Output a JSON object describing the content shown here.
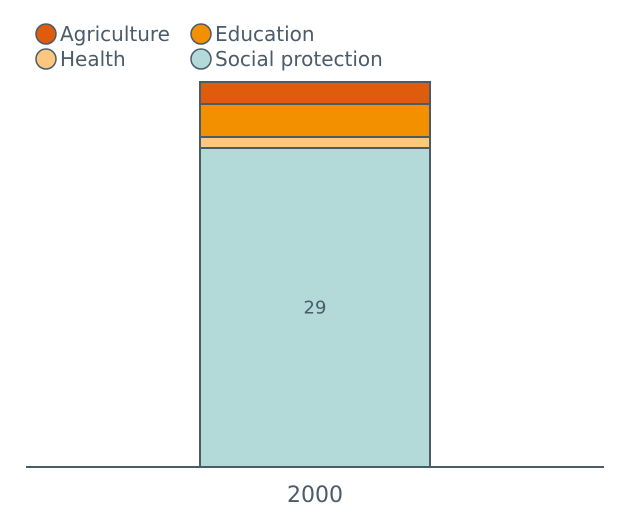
{
  "chart_data": {
    "type": "bar",
    "stacked": true,
    "categories": [
      "2000"
    ],
    "series": [
      {
        "name": "Social protection",
        "values": [
          29
        ],
        "color": "#b3d9d8"
      },
      {
        "name": "Health",
        "values": [
          1
        ],
        "color": "#fdc77f"
      },
      {
        "name": "Education",
        "values": [
          3
        ],
        "color": "#f39000"
      },
      {
        "name": "Agriculture",
        "values": [
          2
        ],
        "color": "#de5c0b"
      }
    ],
    "data_labels": [
      {
        "series": "Social protection",
        "category": "2000",
        "text": "29"
      }
    ],
    "legend": {
      "placement": "top-left",
      "order": [
        "Agriculture",
        "Education",
        "Health",
        "Social protection"
      ]
    },
    "ylim": [
      0,
      35
    ],
    "grid": false,
    "outline_color": "#4a5b6a"
  }
}
